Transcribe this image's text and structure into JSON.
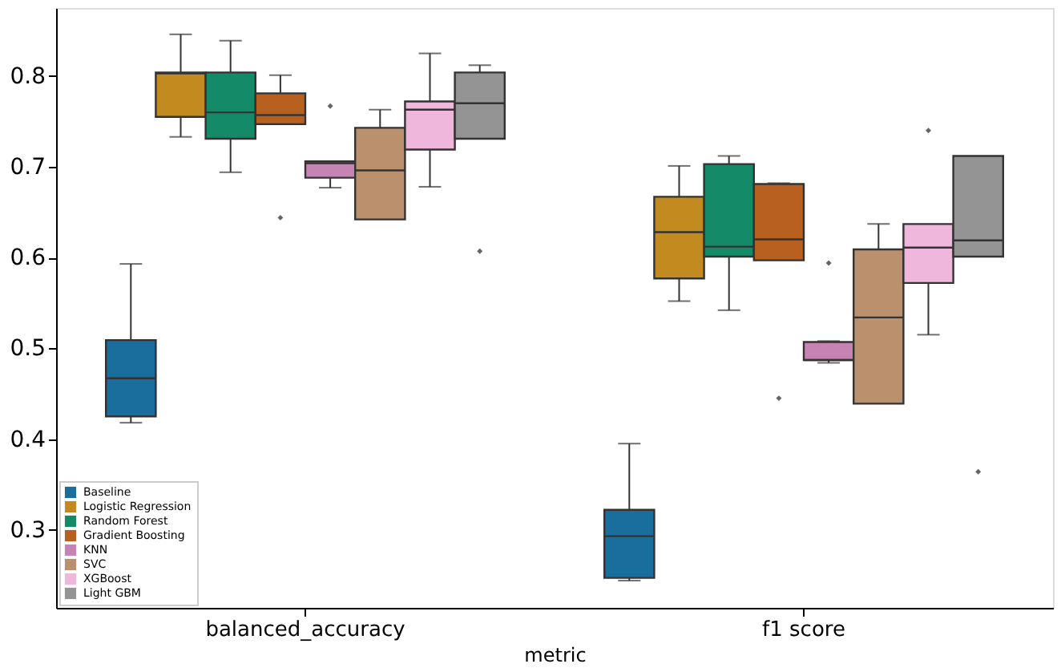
{
  "chart_data": {
    "type": "box",
    "xlabel": "metric",
    "categories": [
      "balanced_accuracy",
      "f1 score"
    ],
    "ylim": [
      0.214,
      0.875
    ],
    "yticks": [
      0.3,
      0.4,
      0.5,
      0.6,
      0.7,
      0.8
    ],
    "grid": false,
    "legend": "bottom left",
    "series": [
      {
        "name": "Baseline",
        "color": "#1a6e9e",
        "boxes": [
          {
            "low": 0.418,
            "q1": 0.425,
            "median": 0.467,
            "q3": 0.509,
            "high": 0.593
          },
          {
            "low": 0.244,
            "q1": 0.247,
            "median": 0.293,
            "q3": 0.322,
            "high": 0.395
          }
        ]
      },
      {
        "name": "Logistic Regression",
        "color": "#c28a1f",
        "boxes": [
          {
            "low": 0.733,
            "q1": 0.755,
            "median": 0.803,
            "q3": 0.804,
            "high": 0.846
          },
          {
            "low": 0.552,
            "q1": 0.577,
            "median": 0.628,
            "q3": 0.667,
            "high": 0.701
          }
        ]
      },
      {
        "name": "Random Forest",
        "color": "#158a68",
        "boxes": [
          {
            "low": 0.694,
            "q1": 0.731,
            "median": 0.76,
            "q3": 0.804,
            "high": 0.839
          },
          {
            "low": 0.542,
            "q1": 0.601,
            "median": 0.612,
            "q3": 0.703,
            "high": 0.712
          }
        ]
      },
      {
        "name": "Gradient Boosting",
        "color": "#b8601f",
        "boxes": [
          {
            "low": 0.747,
            "q1": 0.747,
            "median": 0.757,
            "q3": 0.781,
            "high": 0.801,
            "outliers": [
              0.644
            ]
          },
          {
            "low": 0.597,
            "q1": 0.597,
            "median": 0.62,
            "q3": 0.681,
            "high": 0.682,
            "outliers": [
              0.445
            ]
          }
        ]
      },
      {
        "name": "KNN",
        "color": "#c783b4",
        "boxes": [
          {
            "low": 0.677,
            "q1": 0.688,
            "median": 0.704,
            "q3": 0.706,
            "high": 0.706,
            "outliers": [
              0.767
            ]
          },
          {
            "low": 0.484,
            "q1": 0.487,
            "median": 0.487,
            "q3": 0.507,
            "high": 0.508,
            "outliers": [
              0.594
            ]
          }
        ]
      },
      {
        "name": "SVC",
        "color": "#bb916d",
        "boxes": [
          {
            "low": 0.642,
            "q1": 0.642,
            "median": 0.696,
            "q3": 0.743,
            "high": 0.763
          },
          {
            "low": 0.439,
            "q1": 0.439,
            "median": 0.534,
            "q3": 0.609,
            "high": 0.637
          }
        ]
      },
      {
        "name": "XGBoost",
        "color": "#f0b7dd",
        "boxes": [
          {
            "low": 0.678,
            "q1": 0.719,
            "median": 0.763,
            "q3": 0.772,
            "high": 0.825
          },
          {
            "low": 0.515,
            "q1": 0.572,
            "median": 0.611,
            "q3": 0.637,
            "high": 0.637,
            "outliers": [
              0.74
            ]
          }
        ]
      },
      {
        "name": "Light GBM",
        "color": "#949494",
        "boxes": [
          {
            "low": 0.731,
            "q1": 0.731,
            "median": 0.77,
            "q3": 0.804,
            "high": 0.812,
            "outliers": [
              0.607
            ]
          },
          {
            "low": 0.601,
            "q1": 0.601,
            "median": 0.619,
            "q3": 0.712,
            "high": 0.712,
            "outliers": [
              0.364
            ]
          }
        ]
      }
    ]
  }
}
